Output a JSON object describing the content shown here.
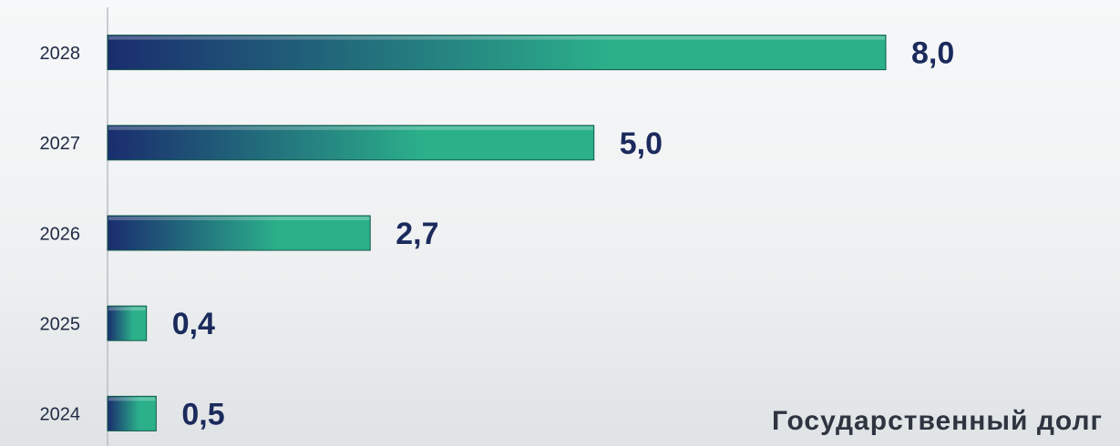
{
  "chart_data": {
    "type": "hbar",
    "title": "Государственный долг",
    "categories": [
      "2028",
      "2027",
      "2026",
      "2025",
      "2024"
    ],
    "values": [
      8.0,
      5.0,
      2.7,
      0.4,
      0.5
    ],
    "value_labels": [
      "8,0",
      "5,0",
      "2,7",
      "0,4",
      "0,5"
    ],
    "colors": [
      "#1a2d6e",
      "#2bb08a"
    ]
  }
}
